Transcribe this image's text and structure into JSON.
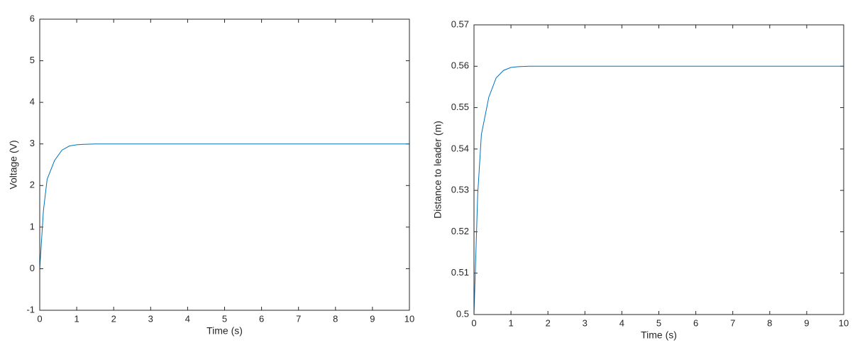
{
  "chart_data": [
    {
      "type": "line",
      "xlabel": "Time (s)",
      "ylabel": "Voltage (V)",
      "x": [
        0,
        0.1,
        0.2,
        0.4,
        0.6,
        0.8,
        1,
        1.2,
        1.5,
        2,
        10
      ],
      "series": [
        {
          "color": "#0072bd",
          "values": [
            0,
            1.4,
            2.15,
            2.6,
            2.85,
            2.95,
            2.98,
            2.99,
            3,
            3,
            3
          ]
        }
      ],
      "xlim": [
        0,
        10
      ],
      "ylim": [
        -1,
        6
      ],
      "xticks": [
        0,
        1,
        2,
        3,
        4,
        5,
        6,
        7,
        8,
        9,
        10
      ],
      "yticks": [
        -1,
        0,
        1,
        2,
        3,
        4,
        5,
        6
      ]
    },
    {
      "type": "line",
      "xlabel": "Time (s)",
      "ylabel": "Distance to leader (m)",
      "x": [
        0,
        0.1,
        0.2,
        0.4,
        0.6,
        0.8,
        1,
        1.2,
        1.5,
        2,
        10
      ],
      "series": [
        {
          "color": "#0072bd",
          "values": [
            0.5,
            0.529,
            0.5435,
            0.5525,
            0.5572,
            0.559,
            0.5597,
            0.5599,
            0.56,
            0.56,
            0.56
          ]
        }
      ],
      "xlim": [
        0,
        10
      ],
      "ylim": [
        0.5,
        0.57
      ],
      "xticks": [
        0,
        1,
        2,
        3,
        4,
        5,
        6,
        7,
        8,
        9,
        10
      ],
      "yticks": [
        0.5,
        0.51,
        0.52,
        0.53,
        0.54,
        0.55,
        0.56,
        0.57
      ]
    }
  ]
}
